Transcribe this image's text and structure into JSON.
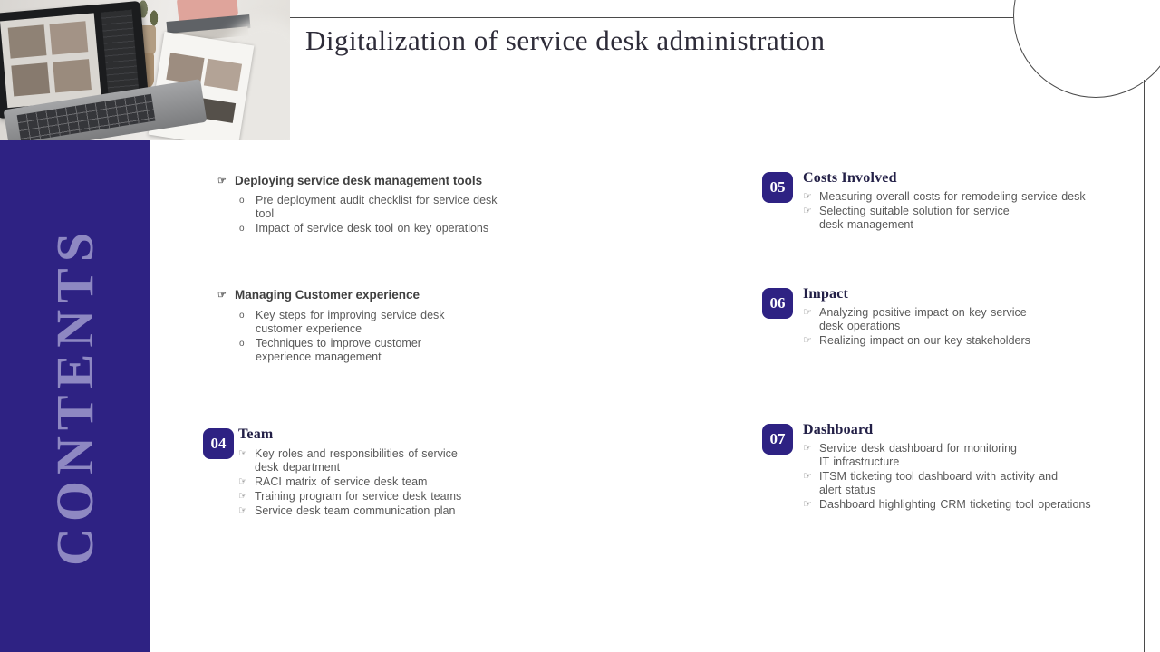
{
  "slide": {
    "title": "Digitalization of service desk administration",
    "sidebar_label": "CONTENTS"
  },
  "icons": {
    "pointer": "☞",
    "circle": "o"
  },
  "colors": {
    "accent": "#2e2283",
    "sidebar_text": "#8e88c2",
    "body_text": "#595959",
    "title_text": "#2e2c39",
    "line": "#4a4a4a"
  },
  "photo": {
    "description": "Person reviewing printed photo sheets beside a laptop with photo-editing software"
  },
  "sections": [
    {
      "number": "",
      "title": "Deploying service desk management tools",
      "items": [
        "Pre deployment audit checklist for service desk tool",
        "Impact of service desk tool on key operations"
      ]
    },
    {
      "number": "",
      "title": "Managing Customer experience",
      "items": [
        "Key steps for improving service desk\ncustomer experience",
        "Techniques to improve customer\nexperience management"
      ]
    },
    {
      "number": "04",
      "title": "Team",
      "items": [
        "Key roles and responsibilities of service\ndesk department",
        "RACI matrix of service desk team",
        "Training program for service desk teams",
        "Service desk team communication plan"
      ]
    },
    {
      "number": "05",
      "title": "Costs Involved",
      "items": [
        "Measuring overall costs for remodeling service desk",
        "Selecting suitable solution for service\ndesk management"
      ]
    },
    {
      "number": "06",
      "title": "Impact",
      "items": [
        "Analyzing positive impact on key service\ndesk operations",
        "Realizing impact on our key stakeholders"
      ]
    },
    {
      "number": "07",
      "title": "Dashboard",
      "items": [
        "Service desk dashboard for monitoring\nIT infrastructure",
        "ITSM ticketing tool dashboard with activity and\nalert status",
        "Dashboard highlighting CRM ticketing tool operations"
      ]
    }
  ]
}
